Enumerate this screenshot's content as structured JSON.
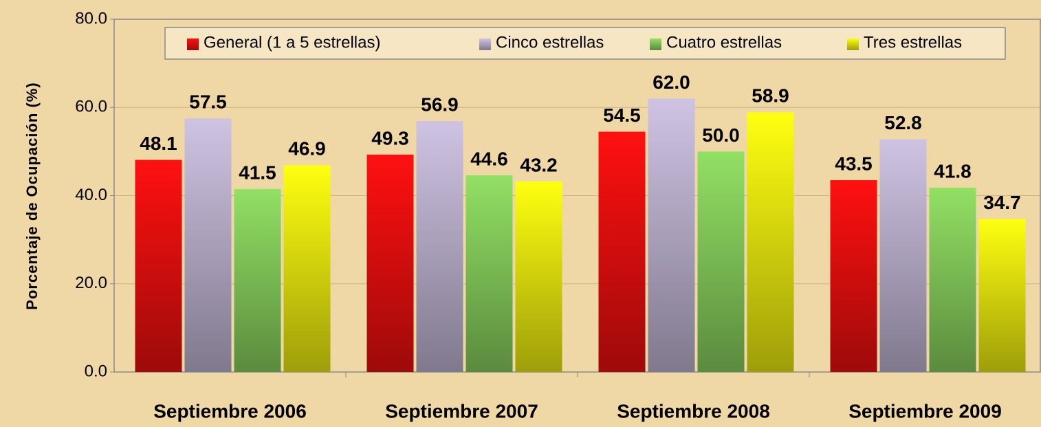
{
  "chart_data": {
    "type": "bar",
    "y_label": "Porcentaje de Ocupación (%)",
    "categories": [
      "Septiembre 2006",
      "Septiembre 2007",
      "Septiembre 2008",
      "Septiembre 2009"
    ],
    "series": [
      {
        "name": "General (1 a 5 estrellas)",
        "color": "#ff1010",
        "values": [
          48.1,
          49.3,
          54.5,
          43.5
        ],
        "value_labels": [
          "48.1",
          "49.3",
          "54.5",
          "43.5"
        ]
      },
      {
        "name": "Cinco estrellas",
        "color": "#cfc3e3",
        "values": [
          57.5,
          56.9,
          62.0,
          52.8
        ],
        "value_labels": [
          "57.5",
          "56.9",
          "62.0",
          "52.8"
        ]
      },
      {
        "name": "Cuatro estrellas",
        "color": "#92e064",
        "values": [
          41.5,
          44.6,
          50.0,
          41.8
        ],
        "value_labels": [
          "41.5",
          "44.6",
          "50.0",
          "41.8"
        ]
      },
      {
        "name": "Tres estrellas",
        "color": "#ffff10",
        "values": [
          46.9,
          43.2,
          58.9,
          34.7
        ],
        "value_labels": [
          "46.9",
          "43.2",
          "58.9",
          "34.7"
        ]
      }
    ],
    "ylim": [
      0,
      80
    ],
    "yticks": [
      {
        "value": 0,
        "label": "0.0"
      },
      {
        "value": 20,
        "label": "20.0"
      },
      {
        "value": 40,
        "label": "40.0"
      },
      {
        "value": 60,
        "label": "60.0"
      },
      {
        "value": 80,
        "label": "80.0"
      }
    ],
    "grid": true,
    "legend": "top"
  }
}
